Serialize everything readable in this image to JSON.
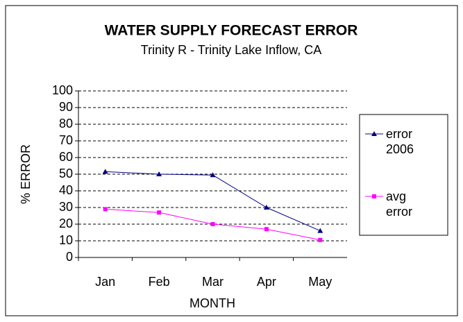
{
  "chart_data": {
    "type": "line",
    "title": "WATER SUPPLY FORECAST ERROR",
    "subtitle": "Trinity R - Trinity Lake Inflow, CA",
    "x_label": "MONTH",
    "y_label": "% ERROR",
    "categories": [
      "Jan",
      "Feb",
      "Mar",
      "Apr",
      "May"
    ],
    "series": [
      {
        "name": "error 2006",
        "color": "#000080",
        "marker": "triangle",
        "values": [
          51.5,
          50,
          49.5,
          30,
          16
        ]
      },
      {
        "name": "avg error",
        "color": "#ff00ff",
        "marker": "square",
        "values": [
          29,
          27,
          20,
          17,
          10.5
        ]
      }
    ],
    "ylim": [
      0,
      100
    ],
    "yticks": [
      0,
      10,
      20,
      30,
      40,
      50,
      60,
      70,
      80,
      90,
      100
    ],
    "grid": true,
    "legend": "right"
  }
}
